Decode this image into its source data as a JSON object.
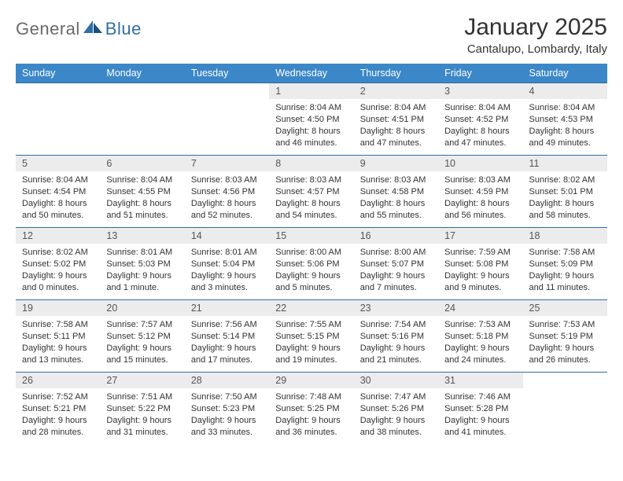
{
  "logo": {
    "word1": "General",
    "word2": "Blue"
  },
  "header": {
    "title": "January 2025",
    "location": "Cantalupo, Lombardy, Italy"
  },
  "day_headers": [
    "Sunday",
    "Monday",
    "Tuesday",
    "Wednesday",
    "Thursday",
    "Friday",
    "Saturday"
  ],
  "style": {
    "header_bg": "#3b87c8",
    "header_fg": "#ffffff",
    "row_border": "#2f6fa8",
    "daynum_bg": "#ececec",
    "daynum_fg": "#555555",
    "body_fg": "#333333",
    "logo_gray": "#6a6a6a",
    "logo_blue": "#2f6fa8",
    "font_family": "Arial",
    "title_fontsize_pt": 22,
    "location_fontsize_pt": 11,
    "dayheader_fontsize_pt": 9,
    "daybody_fontsize_pt": 8
  },
  "calendar": {
    "type": "table",
    "columns": 7,
    "rows": 5,
    "first_weekday_index": 3,
    "days": [
      {
        "n": "1",
        "sunrise": "8:04 AM",
        "sunset": "4:50 PM",
        "daylight": "8 hours and 46 minutes."
      },
      {
        "n": "2",
        "sunrise": "8:04 AM",
        "sunset": "4:51 PM",
        "daylight": "8 hours and 47 minutes."
      },
      {
        "n": "3",
        "sunrise": "8:04 AM",
        "sunset": "4:52 PM",
        "daylight": "8 hours and 47 minutes."
      },
      {
        "n": "4",
        "sunrise": "8:04 AM",
        "sunset": "4:53 PM",
        "daylight": "8 hours and 49 minutes."
      },
      {
        "n": "5",
        "sunrise": "8:04 AM",
        "sunset": "4:54 PM",
        "daylight": "8 hours and 50 minutes."
      },
      {
        "n": "6",
        "sunrise": "8:04 AM",
        "sunset": "4:55 PM",
        "daylight": "8 hours and 51 minutes."
      },
      {
        "n": "7",
        "sunrise": "8:03 AM",
        "sunset": "4:56 PM",
        "daylight": "8 hours and 52 minutes."
      },
      {
        "n": "8",
        "sunrise": "8:03 AM",
        "sunset": "4:57 PM",
        "daylight": "8 hours and 54 minutes."
      },
      {
        "n": "9",
        "sunrise": "8:03 AM",
        "sunset": "4:58 PM",
        "daylight": "8 hours and 55 minutes."
      },
      {
        "n": "10",
        "sunrise": "8:03 AM",
        "sunset": "4:59 PM",
        "daylight": "8 hours and 56 minutes."
      },
      {
        "n": "11",
        "sunrise": "8:02 AM",
        "sunset": "5:01 PM",
        "daylight": "8 hours and 58 minutes."
      },
      {
        "n": "12",
        "sunrise": "8:02 AM",
        "sunset": "5:02 PM",
        "daylight": "9 hours and 0 minutes."
      },
      {
        "n": "13",
        "sunrise": "8:01 AM",
        "sunset": "5:03 PM",
        "daylight": "9 hours and 1 minute."
      },
      {
        "n": "14",
        "sunrise": "8:01 AM",
        "sunset": "5:04 PM",
        "daylight": "9 hours and 3 minutes."
      },
      {
        "n": "15",
        "sunrise": "8:00 AM",
        "sunset": "5:06 PM",
        "daylight": "9 hours and 5 minutes."
      },
      {
        "n": "16",
        "sunrise": "8:00 AM",
        "sunset": "5:07 PM",
        "daylight": "9 hours and 7 minutes."
      },
      {
        "n": "17",
        "sunrise": "7:59 AM",
        "sunset": "5:08 PM",
        "daylight": "9 hours and 9 minutes."
      },
      {
        "n": "18",
        "sunrise": "7:58 AM",
        "sunset": "5:09 PM",
        "daylight": "9 hours and 11 minutes."
      },
      {
        "n": "19",
        "sunrise": "7:58 AM",
        "sunset": "5:11 PM",
        "daylight": "9 hours and 13 minutes."
      },
      {
        "n": "20",
        "sunrise": "7:57 AM",
        "sunset": "5:12 PM",
        "daylight": "9 hours and 15 minutes."
      },
      {
        "n": "21",
        "sunrise": "7:56 AM",
        "sunset": "5:14 PM",
        "daylight": "9 hours and 17 minutes."
      },
      {
        "n": "22",
        "sunrise": "7:55 AM",
        "sunset": "5:15 PM",
        "daylight": "9 hours and 19 minutes."
      },
      {
        "n": "23",
        "sunrise": "7:54 AM",
        "sunset": "5:16 PM",
        "daylight": "9 hours and 21 minutes."
      },
      {
        "n": "24",
        "sunrise": "7:53 AM",
        "sunset": "5:18 PM",
        "daylight": "9 hours and 24 minutes."
      },
      {
        "n": "25",
        "sunrise": "7:53 AM",
        "sunset": "5:19 PM",
        "daylight": "9 hours and 26 minutes."
      },
      {
        "n": "26",
        "sunrise": "7:52 AM",
        "sunset": "5:21 PM",
        "daylight": "9 hours and 28 minutes."
      },
      {
        "n": "27",
        "sunrise": "7:51 AM",
        "sunset": "5:22 PM",
        "daylight": "9 hours and 31 minutes."
      },
      {
        "n": "28",
        "sunrise": "7:50 AM",
        "sunset": "5:23 PM",
        "daylight": "9 hours and 33 minutes."
      },
      {
        "n": "29",
        "sunrise": "7:48 AM",
        "sunset": "5:25 PM",
        "daylight": "9 hours and 36 minutes."
      },
      {
        "n": "30",
        "sunrise": "7:47 AM",
        "sunset": "5:26 PM",
        "daylight": "9 hours and 38 minutes."
      },
      {
        "n": "31",
        "sunrise": "7:46 AM",
        "sunset": "5:28 PM",
        "daylight": "9 hours and 41 minutes."
      }
    ],
    "labels": {
      "sunrise": "Sunrise: ",
      "sunset": "Sunset: ",
      "daylight": "Daylight: "
    }
  }
}
